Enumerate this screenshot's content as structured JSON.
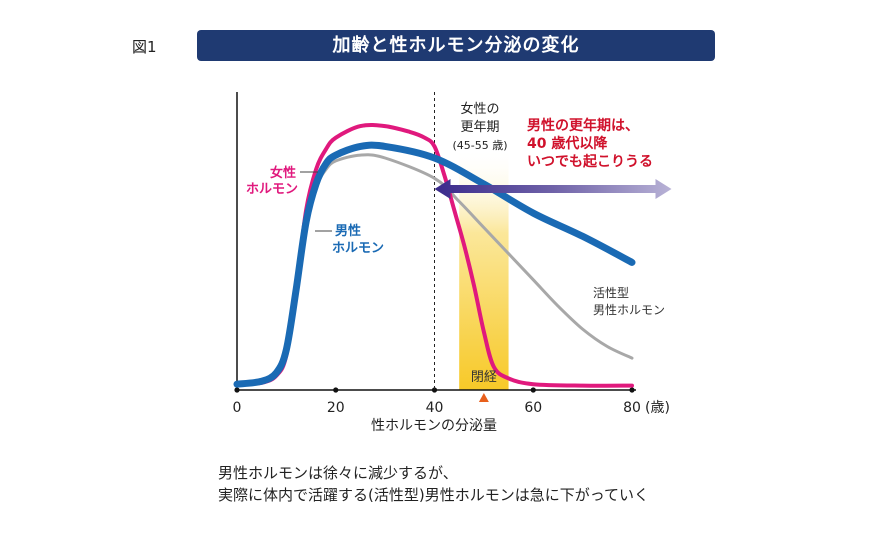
{
  "figure_label": "図1",
  "title": "加齢と性ホルモン分泌の変化",
  "caption": [
    "男性ホルモンは徐々に減少するが、",
    "実際に体内で活躍する(活性型)男性ホルモンは急に下がっていく"
  ],
  "colors": {
    "title_bg": "#1f3a72",
    "female": "#e0197d",
    "male": "#1a6ab4",
    "active_male": "#a8a8a8",
    "menopause_band": "#f9d64a",
    "andropause_text": "#d0112b",
    "arrow": "#3a2a8c",
    "marker": "#e8601c"
  },
  "chart_data": {
    "type": "line",
    "xlabel": "性ホルモンの分泌量",
    "x_unit": "(歳)",
    "xlim": [
      0,
      80
    ],
    "ylim": [
      0,
      100
    ],
    "x_ticks": [
      0,
      20,
      40,
      60,
      80
    ],
    "x_tick_labels": [
      "0",
      "20",
      "40",
      "60",
      "80"
    ],
    "series": [
      {
        "name": "女性ホルモン",
        "label_lines": [
          "女性",
          "ホルモン"
        ],
        "color": "#e0197d",
        "x": [
          0,
          5,
          8,
          10,
          12,
          14,
          16,
          18,
          20,
          25,
          30,
          35,
          38,
          40,
          42,
          44,
          46,
          48,
          50,
          52,
          55,
          60,
          70,
          80
        ],
        "y": [
          2,
          2.5,
          5,
          12,
          35,
          62,
          76,
          83,
          87,
          91,
          91,
          89,
          87,
          84,
          74,
          62,
          50,
          36,
          20,
          8,
          4,
          2,
          1.5,
          1.5
        ]
      },
      {
        "name": "男性ホルモン",
        "label_lines": [
          "男性",
          "ホルモン"
        ],
        "color": "#1a6ab4",
        "x": [
          0,
          5,
          8,
          10,
          12,
          14,
          16,
          18,
          20,
          25,
          30,
          40,
          50,
          60,
          70,
          80
        ],
        "y": [
          2,
          3,
          6,
          14,
          35,
          58,
          71,
          78,
          81,
          84,
          84,
          80,
          71,
          61,
          53,
          44
        ]
      },
      {
        "name": "活性型男性ホルモン",
        "label_lines": [
          "活性型",
          "男性ホルモン"
        ],
        "color": "#a8a8a8",
        "x": [
          0,
          5,
          8,
          10,
          12,
          14,
          16,
          18,
          20,
          25,
          30,
          40,
          45,
          50,
          55,
          60,
          65,
          70,
          75,
          80
        ],
        "y": [
          2,
          3,
          6,
          14,
          35,
          58,
          70,
          76,
          79,
          81,
          80,
          73,
          65,
          56,
          47,
          38,
          29,
          21,
          15,
          11
        ]
      }
    ],
    "reference_line_x": 40,
    "menopause_band": {
      "x_start": 45,
      "x_end": 55,
      "label": "閉経",
      "label_lines": [
        "女性の",
        "更年期",
        "(45-55 歳)"
      ]
    },
    "menopause_marker_x": 50,
    "andropause_arrow": {
      "x_start": 40,
      "x_end": 88,
      "y": 80
    },
    "andropause_text": [
      "男性の更年期は、",
      "40 歳代以降",
      "いつでも起こりうる"
    ]
  }
}
